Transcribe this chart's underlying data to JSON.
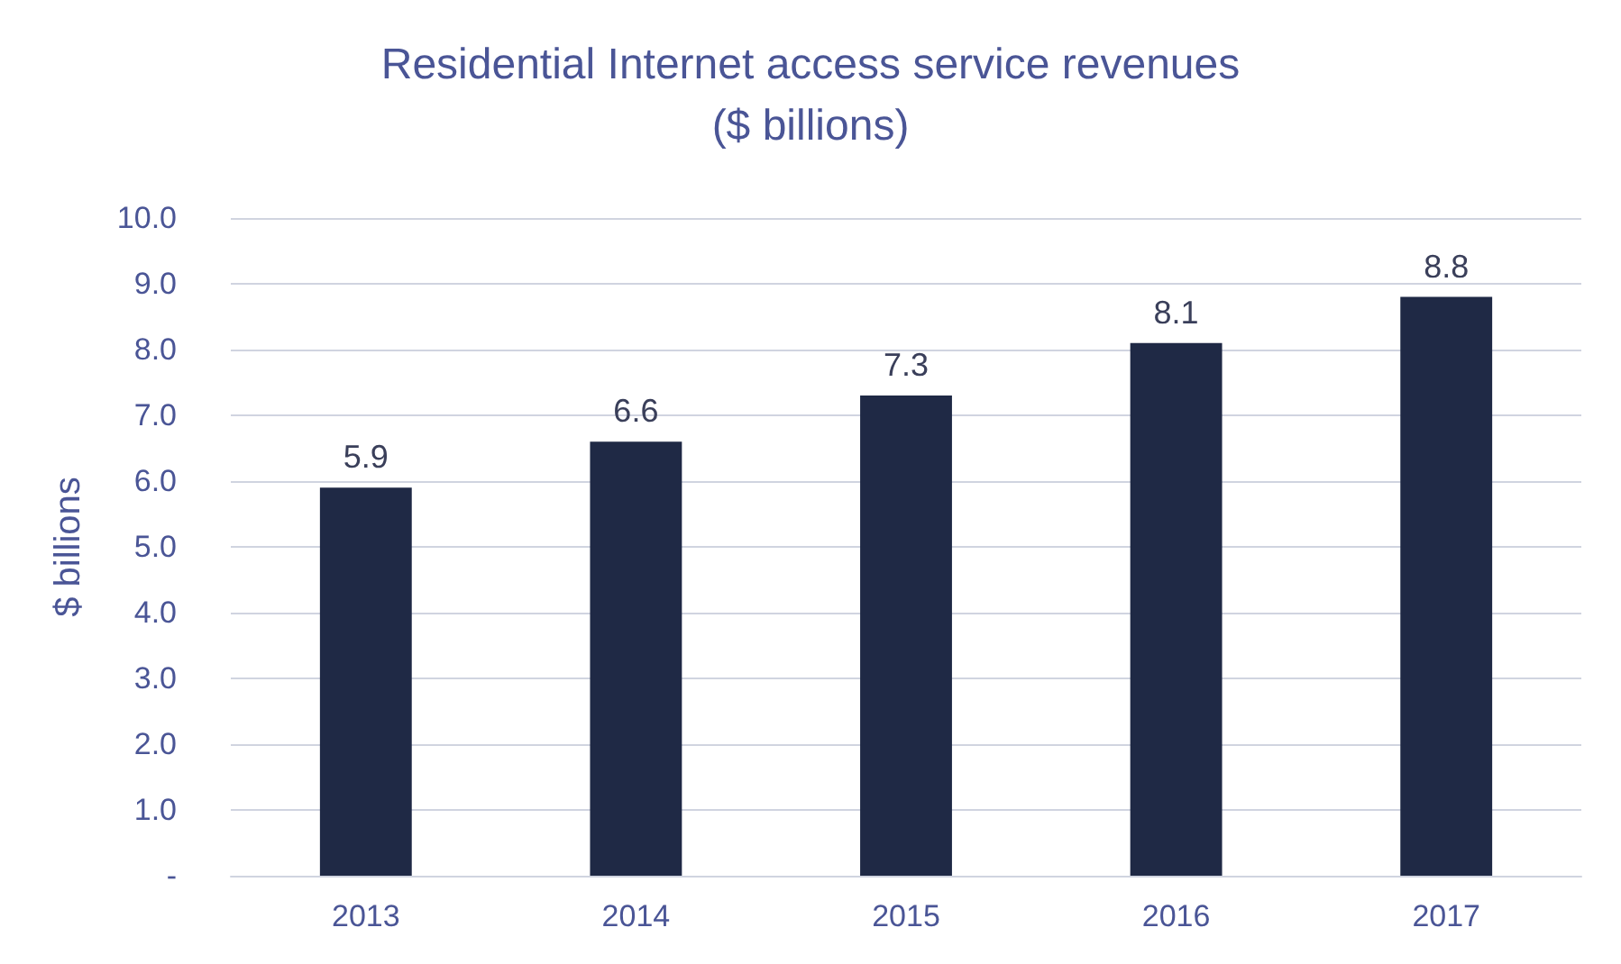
{
  "chart_data": {
    "type": "bar",
    "title": "Residential Internet access service revenues\n($ billions)",
    "ylabel": "$ billions",
    "categories": [
      "2013",
      "2014",
      "2015",
      "2016",
      "2017"
    ],
    "values": [
      5.9,
      6.6,
      7.3,
      8.1,
      8.8
    ],
    "color": "#1f2945",
    "ylim": [
      0,
      10
    ],
    "yticks": [
      {
        "value": 0,
        "label": "-"
      },
      {
        "value": 1,
        "label": "1.0"
      },
      {
        "value": 2,
        "label": "2.0"
      },
      {
        "value": 3,
        "label": "3.0"
      },
      {
        "value": 4,
        "label": "4.0"
      },
      {
        "value": 5,
        "label": "5.0"
      },
      {
        "value": 6,
        "label": "6.0"
      },
      {
        "value": 7,
        "label": "7.0"
      },
      {
        "value": 8,
        "label": "8.0"
      },
      {
        "value": 9,
        "label": "9.0"
      },
      {
        "value": 10,
        "label": "10.0"
      }
    ],
    "grid": true,
    "data_labels": true
  }
}
